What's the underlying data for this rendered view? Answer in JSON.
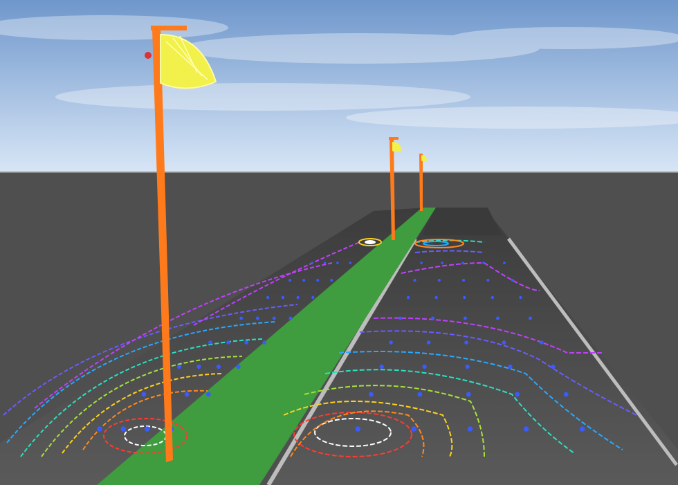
{
  "scene": {
    "kind": "3d-road-lighting-isolux-view",
    "colors": {
      "sky_top": "#6f97cc",
      "sky_bottom": "#d8e6f6",
      "ground": "#4f4f4f",
      "road_surface": "#585858",
      "road_far": "#3c3c3c",
      "median": "#3f9c3f",
      "pole": "#ff7a1a",
      "luminaire": "#f2f04a",
      "lane_line": "#bdbdbd"
    },
    "contour_palette": [
      "#ffffff",
      "#ff3b2f",
      "#ff8a1e",
      "#ffd21e",
      "#a6e23a",
      "#2ee0c0",
      "#2aa8ff",
      "#6a5cff",
      "#c040ff"
    ],
    "objects": {
      "poles": 3,
      "luminaires": 3,
      "grid_markers": "calculation-point-markers"
    }
  }
}
